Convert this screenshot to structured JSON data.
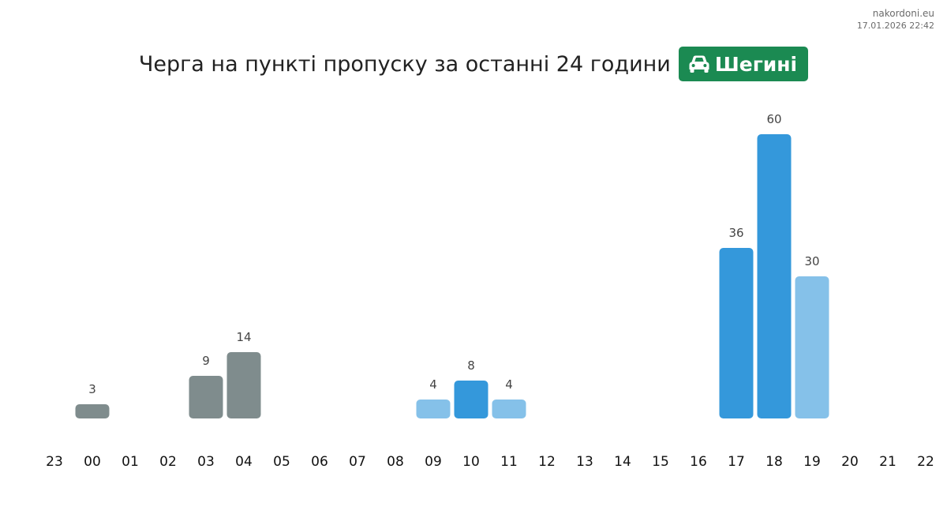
{
  "brand": {
    "site": "nakordoni.eu",
    "datetime": "17.01.2026 22:42"
  },
  "header": {
    "title": "Черга на пункті пропуску за останні 24 години",
    "checkpoint": "Шегині",
    "checkpoint_icon": "car-icon"
  },
  "colors": {
    "badge": "#1b8a52",
    "gray": "#7f8c8d",
    "blue": "#3498db",
    "light_blue": "#85c1e9"
  },
  "chart_data": {
    "type": "bar",
    "categories": [
      "23",
      "00",
      "01",
      "02",
      "03",
      "04",
      "05",
      "06",
      "07",
      "08",
      "09",
      "10",
      "11",
      "12",
      "13",
      "14",
      "15",
      "16",
      "17",
      "18",
      "19",
      "20",
      "21",
      "22"
    ],
    "values": [
      null,
      3,
      null,
      null,
      9,
      14,
      null,
      null,
      null,
      null,
      4,
      8,
      4,
      null,
      null,
      null,
      null,
      null,
      36,
      60,
      30,
      null,
      null,
      null
    ],
    "bar_colors": [
      null,
      "gray",
      null,
      null,
      "gray",
      "gray",
      null,
      null,
      null,
      null,
      "light_blue",
      "blue",
      "light_blue",
      null,
      null,
      null,
      null,
      null,
      "blue",
      "blue",
      "light_blue",
      null,
      null,
      null
    ],
    "ylim": [
      0,
      60
    ],
    "xlabel": "",
    "ylabel": "",
    "title": ""
  }
}
